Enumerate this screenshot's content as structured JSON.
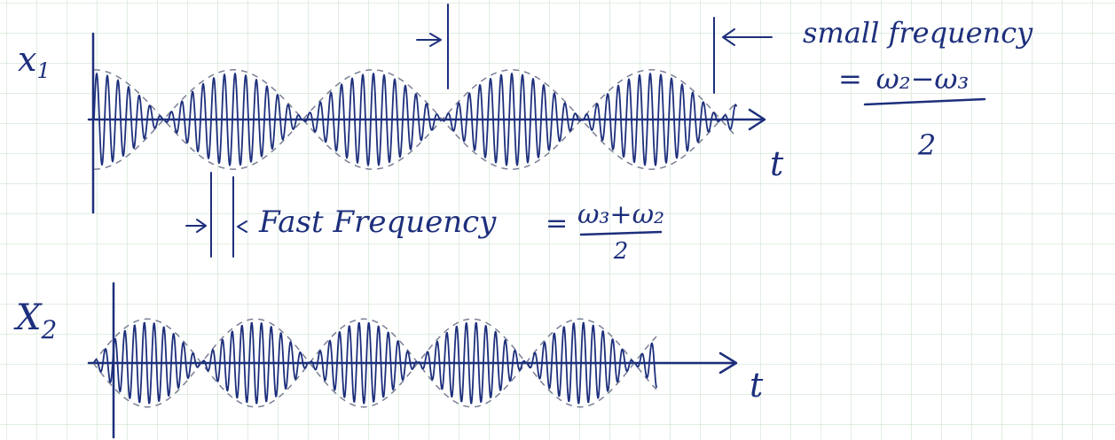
{
  "plots": [
    {
      "label": "x",
      "subscript": "1",
      "t_label": "t"
    },
    {
      "label": "X",
      "subscript": "2",
      "t_label": "t"
    }
  ],
  "annotations": {
    "small": {
      "text": "small frequency",
      "equals": "=",
      "numerator": "ω₂−ω₃",
      "denominator": "2"
    },
    "fast": {
      "text": "Fast Frequency",
      "equals": "=",
      "numerator": "ω₃+ω₂",
      "denominator": "2"
    }
  }
}
